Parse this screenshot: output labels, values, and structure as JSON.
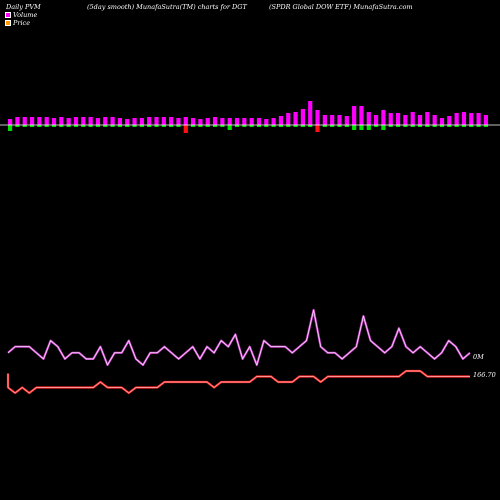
{
  "header": {
    "left": "Daily PVM",
    "middle": "(5day smooth) MunafaSutra(TM) charts for DGT",
    "right": "(SPDR Global DOW ETF) MunafaSutra.com"
  },
  "legend": [
    {
      "label": "Volume",
      "color": "#ff00ff"
    },
    {
      "label": "Price",
      "color": "#ff9900"
    }
  ],
  "colors": {
    "background": "#000000",
    "volume_up": "#ff00ff",
    "volume_down_green": "#00dd00",
    "volume_down_red": "#ff1111",
    "volume_line": "#cc44cc",
    "price_line": "#ff2a2a",
    "axis": "#ffffff"
  },
  "chart_data": [
    {
      "type": "bar",
      "title": "Daily PVM",
      "xlabel": "",
      "ylabel": "",
      "grid": false,
      "colors": [
        "magenta",
        "magenta",
        "magenta",
        "magenta",
        "magenta",
        "magenta",
        "magenta",
        "magenta",
        "magenta",
        "magenta",
        "magenta",
        "magenta",
        "magenta",
        "magenta",
        "magenta",
        "magenta",
        "magenta",
        "magenta",
        "magenta",
        "magenta",
        "magenta",
        "magenta",
        "magenta",
        "magenta",
        "magenta",
        "magenta",
        "magenta",
        "magenta",
        "magenta",
        "magenta",
        "magenta",
        "magenta",
        "magenta",
        "magenta",
        "magenta",
        "magenta",
        "magenta",
        "magenta",
        "magenta",
        "magenta",
        "magenta",
        "magenta",
        "magenta",
        "magenta",
        "magenta",
        "magenta",
        "magenta",
        "magenta",
        "magenta",
        "magenta",
        "magenta",
        "magenta",
        "magenta",
        "magenta",
        "magenta",
        "magenta",
        "magenta",
        "magenta",
        "magenta",
        "magenta",
        "magenta",
        "magenta",
        "magenta",
        "magenta",
        "magenta",
        "magenta"
      ],
      "bars": [
        {
          "up": 6,
          "down": 6,
          "down_color": "green"
        },
        {
          "up": 8,
          "down": 2,
          "down_color": "green"
        },
        {
          "up": 8,
          "down": 2,
          "down_color": "green"
        },
        {
          "up": 8,
          "down": 2,
          "down_color": "green"
        },
        {
          "up": 8,
          "down": 2,
          "down_color": "green"
        },
        {
          "up": 8,
          "down": 2,
          "down_color": "green"
        },
        {
          "up": 7,
          "down": 2,
          "down_color": "green"
        },
        {
          "up": 8,
          "down": 2,
          "down_color": "green"
        },
        {
          "up": 7,
          "down": 2,
          "down_color": "green"
        },
        {
          "up": 8,
          "down": 2,
          "down_color": "green"
        },
        {
          "up": 8,
          "down": 2,
          "down_color": "green"
        },
        {
          "up": 8,
          "down": 2,
          "down_color": "green"
        },
        {
          "up": 7,
          "down": 2,
          "down_color": "green"
        },
        {
          "up": 8,
          "down": 2,
          "down_color": "green"
        },
        {
          "up": 8,
          "down": 2,
          "down_color": "green"
        },
        {
          "up": 7,
          "down": 2,
          "down_color": "green"
        },
        {
          "up": 6,
          "down": 2,
          "down_color": "green"
        },
        {
          "up": 7,
          "down": 2,
          "down_color": "green"
        },
        {
          "up": 7,
          "down": 2,
          "down_color": "green"
        },
        {
          "up": 8,
          "down": 2,
          "down_color": "green"
        },
        {
          "up": 8,
          "down": 2,
          "down_color": "green"
        },
        {
          "up": 8,
          "down": 2,
          "down_color": "green"
        },
        {
          "up": 8,
          "down": 2,
          "down_color": "green"
        },
        {
          "up": 7,
          "down": 2,
          "down_color": "green"
        },
        {
          "up": 8,
          "down": 8,
          "down_color": "red"
        },
        {
          "up": 7,
          "down": 2,
          "down_color": "green"
        },
        {
          "up": 6,
          "down": 2,
          "down_color": "green"
        },
        {
          "up": 7,
          "down": 2,
          "down_color": "green"
        },
        {
          "up": 8,
          "down": 2,
          "down_color": "green"
        },
        {
          "up": 7,
          "down": 2,
          "down_color": "green"
        },
        {
          "up": 7,
          "down": 5,
          "down_color": "green"
        },
        {
          "up": 7,
          "down": 2,
          "down_color": "green"
        },
        {
          "up": 7,
          "down": 2,
          "down_color": "green"
        },
        {
          "up": 7,
          "down": 2,
          "down_color": "green"
        },
        {
          "up": 7,
          "down": 2,
          "down_color": "green"
        },
        {
          "up": 6,
          "down": 2,
          "down_color": "green"
        },
        {
          "up": 7,
          "down": 2,
          "down_color": "green"
        },
        {
          "up": 9,
          "down": 2,
          "down_color": "green"
        },
        {
          "up": 12,
          "down": 2,
          "down_color": "green"
        },
        {
          "up": 13,
          "down": 2,
          "down_color": "green"
        },
        {
          "up": 16,
          "down": 2,
          "down_color": "green"
        },
        {
          "up": 24,
          "down": 2,
          "down_color": "green"
        },
        {
          "up": 15,
          "down": 7,
          "down_color": "red"
        },
        {
          "up": 10,
          "down": 2,
          "down_color": "green"
        },
        {
          "up": 10,
          "down": 2,
          "down_color": "green"
        },
        {
          "up": 10,
          "down": 2,
          "down_color": "green"
        },
        {
          "up": 9,
          "down": 2,
          "down_color": "green"
        },
        {
          "up": 19,
          "down": 5,
          "down_color": "green"
        },
        {
          "up": 19,
          "down": 5,
          "down_color": "green"
        },
        {
          "up": 13,
          "down": 5,
          "down_color": "green"
        },
        {
          "up": 10,
          "down": 2,
          "down_color": "green"
        },
        {
          "up": 15,
          "down": 5,
          "down_color": "green"
        },
        {
          "up": 12,
          "down": 2,
          "down_color": "green"
        },
        {
          "up": 12,
          "down": 2,
          "down_color": "green"
        },
        {
          "up": 10,
          "down": 2,
          "down_color": "green"
        },
        {
          "up": 13,
          "down": 2,
          "down_color": "green"
        },
        {
          "up": 10,
          "down": 2,
          "down_color": "green"
        },
        {
          "up": 13,
          "down": 2,
          "down_color": "green"
        },
        {
          "up": 10,
          "down": 2,
          "down_color": "green"
        },
        {
          "up": 7,
          "down": 2,
          "down_color": "green"
        },
        {
          "up": 9,
          "down": 2,
          "down_color": "green"
        },
        {
          "up": 12,
          "down": 2,
          "down_color": "green"
        },
        {
          "up": 13,
          "down": 2,
          "down_color": "green"
        },
        {
          "up": 12,
          "down": 2,
          "down_color": "green"
        },
        {
          "up": 12,
          "down": 2,
          "down_color": "green"
        },
        {
          "up": 10,
          "down": 2,
          "down_color": "green"
        }
      ]
    },
    {
      "type": "line",
      "series": [
        {
          "name": "Volume",
          "color": "#cc44cc",
          "values": [
            36,
            37,
            37,
            37,
            36,
            35,
            38,
            37,
            35,
            36,
            36,
            35,
            35,
            37,
            34,
            36,
            36,
            38,
            35,
            34,
            36,
            36,
            37,
            36,
            35,
            36,
            37,
            35,
            37,
            36,
            38,
            37,
            39,
            35,
            37,
            34,
            38,
            37,
            37,
            37,
            36,
            37,
            38,
            43,
            37,
            36,
            36,
            35,
            36,
            37,
            42,
            38,
            37,
            36,
            37,
            40,
            37,
            36,
            37,
            36,
            35,
            36,
            38,
            37,
            35,
            36
          ]
        },
        {
          "name": "Price",
          "color": "#ff2a2a",
          "values": [
            31,
            30,
            31,
            30,
            31,
            31,
            31,
            31,
            31,
            31,
            31,
            31,
            31,
            32,
            31,
            31,
            31,
            30,
            31,
            31,
            31,
            31,
            32,
            32,
            32,
            32,
            32,
            32,
            32,
            31,
            32,
            32,
            32,
            32,
            32,
            33,
            33,
            33,
            32,
            32,
            32,
            33,
            33,
            33,
            32,
            33,
            33,
            33,
            33,
            33,
            33,
            33,
            33,
            33,
            33,
            33,
            34,
            34,
            34,
            33,
            33,
            33,
            33,
            33,
            33,
            33
          ]
        }
      ],
      "labels": {
        "volume_end": "0M",
        "price_end": "166.70"
      }
    }
  ]
}
